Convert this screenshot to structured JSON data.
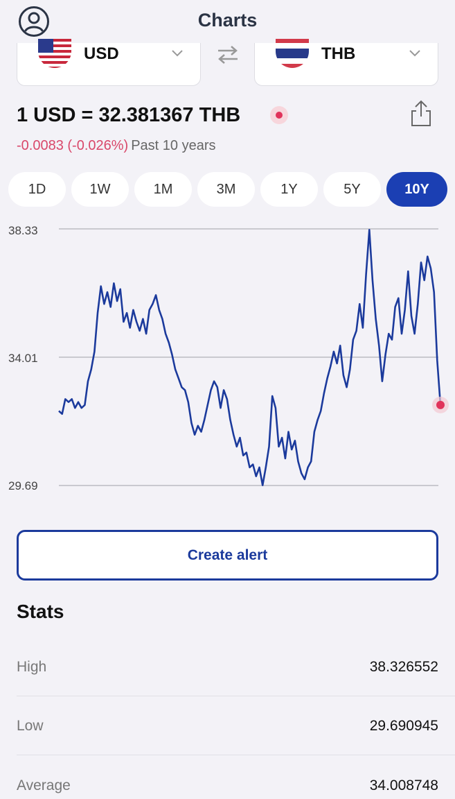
{
  "header": {
    "title": "Charts"
  },
  "from_currency": {
    "code": "USD",
    "flag": "us-flag"
  },
  "to_currency": {
    "code": "THB",
    "flag": "th-flag"
  },
  "rate": {
    "text": "1 USD = 32.381367 THB"
  },
  "change": {
    "value": "-0.0083 (-0.026%)",
    "period": "Past 10 years"
  },
  "tabs": [
    {
      "label": "1D"
    },
    {
      "label": "1W"
    },
    {
      "label": "1M"
    },
    {
      "label": "3M"
    },
    {
      "label": "1Y"
    },
    {
      "label": "5Y"
    },
    {
      "label": "10Y",
      "active": true
    }
  ],
  "colors": {
    "accent": "#1b3fb3",
    "line": "#1b3a9c",
    "negative": "#d9486a",
    "live_dot": "#e0335b"
  },
  "chart_data": {
    "type": "line",
    "y_ticks": [
      "38.33",
      "34.01",
      "29.69"
    ],
    "ylim": [
      29.69,
      38.33
    ],
    "grid": true,
    "series": [
      {
        "values": [
          32.2,
          32.1,
          32.6,
          32.5,
          32.6,
          32.3,
          32.5,
          32.3,
          32.4,
          33.2,
          33.6,
          34.2,
          35.5,
          36.4,
          35.8,
          36.2,
          35.7,
          36.5,
          35.9,
          36.3,
          35.2,
          35.5,
          35.0,
          35.6,
          35.2,
          34.9,
          35.3,
          34.8,
          35.6,
          35.8,
          36.1,
          35.6,
          35.3,
          34.8,
          34.5,
          34.1,
          33.6,
          33.3,
          33.0,
          32.9,
          32.5,
          31.8,
          31.4,
          31.7,
          31.5,
          31.9,
          32.4,
          32.9,
          33.2,
          33.0,
          32.3,
          32.9,
          32.6,
          31.9,
          31.4,
          31.0,
          31.3,
          30.7,
          30.8,
          30.3,
          30.4,
          30.0,
          30.3,
          29.7,
          30.3,
          31.0,
          32.7,
          32.3,
          31.0,
          31.3,
          30.6,
          31.5,
          30.9,
          31.2,
          30.5,
          30.1,
          29.9,
          30.3,
          30.5,
          31.5,
          31.9,
          32.2,
          32.8,
          33.3,
          33.7,
          34.2,
          33.8,
          34.4,
          33.4,
          33.0,
          33.6,
          34.6,
          34.9,
          35.8,
          35.0,
          36.8,
          38.3,
          36.6,
          35.3,
          34.4,
          33.2,
          34.1,
          34.8,
          34.6,
          35.7,
          36.0,
          34.8,
          35.6,
          36.9,
          35.4,
          34.8,
          35.8,
          37.2,
          36.6,
          37.4,
          37.0,
          36.2,
          33.9,
          32.4
        ]
      }
    ]
  },
  "create_alert": {
    "label": "Create alert"
  },
  "stats": {
    "title": "Stats",
    "rows": [
      {
        "label": "High",
        "value": "38.326552"
      },
      {
        "label": "Low",
        "value": "29.690945"
      },
      {
        "label": "Average",
        "value": "34.008748"
      }
    ]
  }
}
